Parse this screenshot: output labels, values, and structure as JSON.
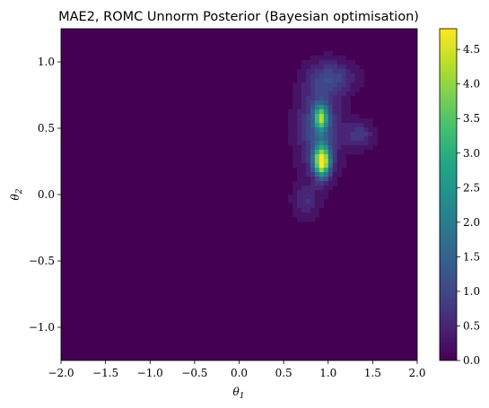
{
  "chart_data": {
    "type": "heatmap",
    "title": "MAE2, ROMC Unnorm Posterior (Bayesian optimisation)",
    "xlabel": "θ1",
    "ylabel": "θ2",
    "xlim": [
      -2.0,
      2.0
    ],
    "ylim": [
      -1.25,
      1.25
    ],
    "x_ticks": [
      "−2.0",
      "−1.5",
      "−1.0",
      "−0.5",
      "0.0",
      "0.5",
      "1.0",
      "1.5",
      "2.0"
    ],
    "x_tick_values": [
      -2.0,
      -1.5,
      -1.0,
      -0.5,
      0.0,
      0.5,
      1.0,
      1.5,
      2.0
    ],
    "y_ticks": [
      "−1.0",
      "−0.5",
      "0.0",
      "0.5",
      "1.0"
    ],
    "y_tick_values": [
      -1.0,
      -0.5,
      0.0,
      0.5,
      1.0
    ],
    "colorbar": {
      "colormap": "viridis",
      "range": [
        0.0,
        4.8
      ],
      "ticks": [
        "0.0",
        "0.5",
        "1.0",
        "1.5",
        "2.0",
        "2.5",
        "3.0",
        "3.5",
        "4.0",
        "4.5"
      ],
      "tick_values": [
        0.0,
        0.5,
        1.0,
        1.5,
        2.0,
        2.5,
        3.0,
        3.5,
        4.0,
        4.5
      ]
    },
    "density_peaks": [
      {
        "x": 0.93,
        "y": 0.25,
        "value": 4.8
      },
      {
        "x": 0.92,
        "y": 0.58,
        "value": 3.2
      }
    ],
    "grid": false,
    "grid_color_min": "#440154",
    "grid_color_max": "#fde725"
  }
}
